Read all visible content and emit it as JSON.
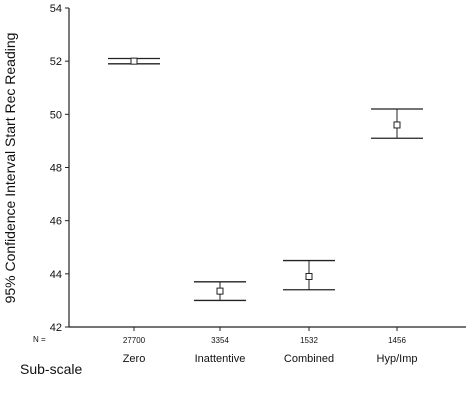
{
  "chart_data": {
    "type": "errorbar",
    "title": "",
    "ylabel": "95% Confidence Interval Start Rec Reading",
    "xlabel": "Sub-scale",
    "ylim": [
      42,
      54
    ],
    "yticks": [
      42,
      44,
      46,
      48,
      50,
      52,
      54
    ],
    "n_label": "N =",
    "grid": false,
    "categories": [
      "Zero",
      "Inattentive",
      "Combined",
      "Hyp/Imp"
    ],
    "n": [
      "27700",
      "3354",
      "1532",
      "1456"
    ],
    "means": [
      52.0,
      43.35,
      43.9,
      49.6
    ],
    "ci_lower": [
      51.9,
      43.0,
      43.4,
      49.1
    ],
    "ci_upper": [
      52.1,
      43.7,
      44.5,
      50.2
    ]
  }
}
